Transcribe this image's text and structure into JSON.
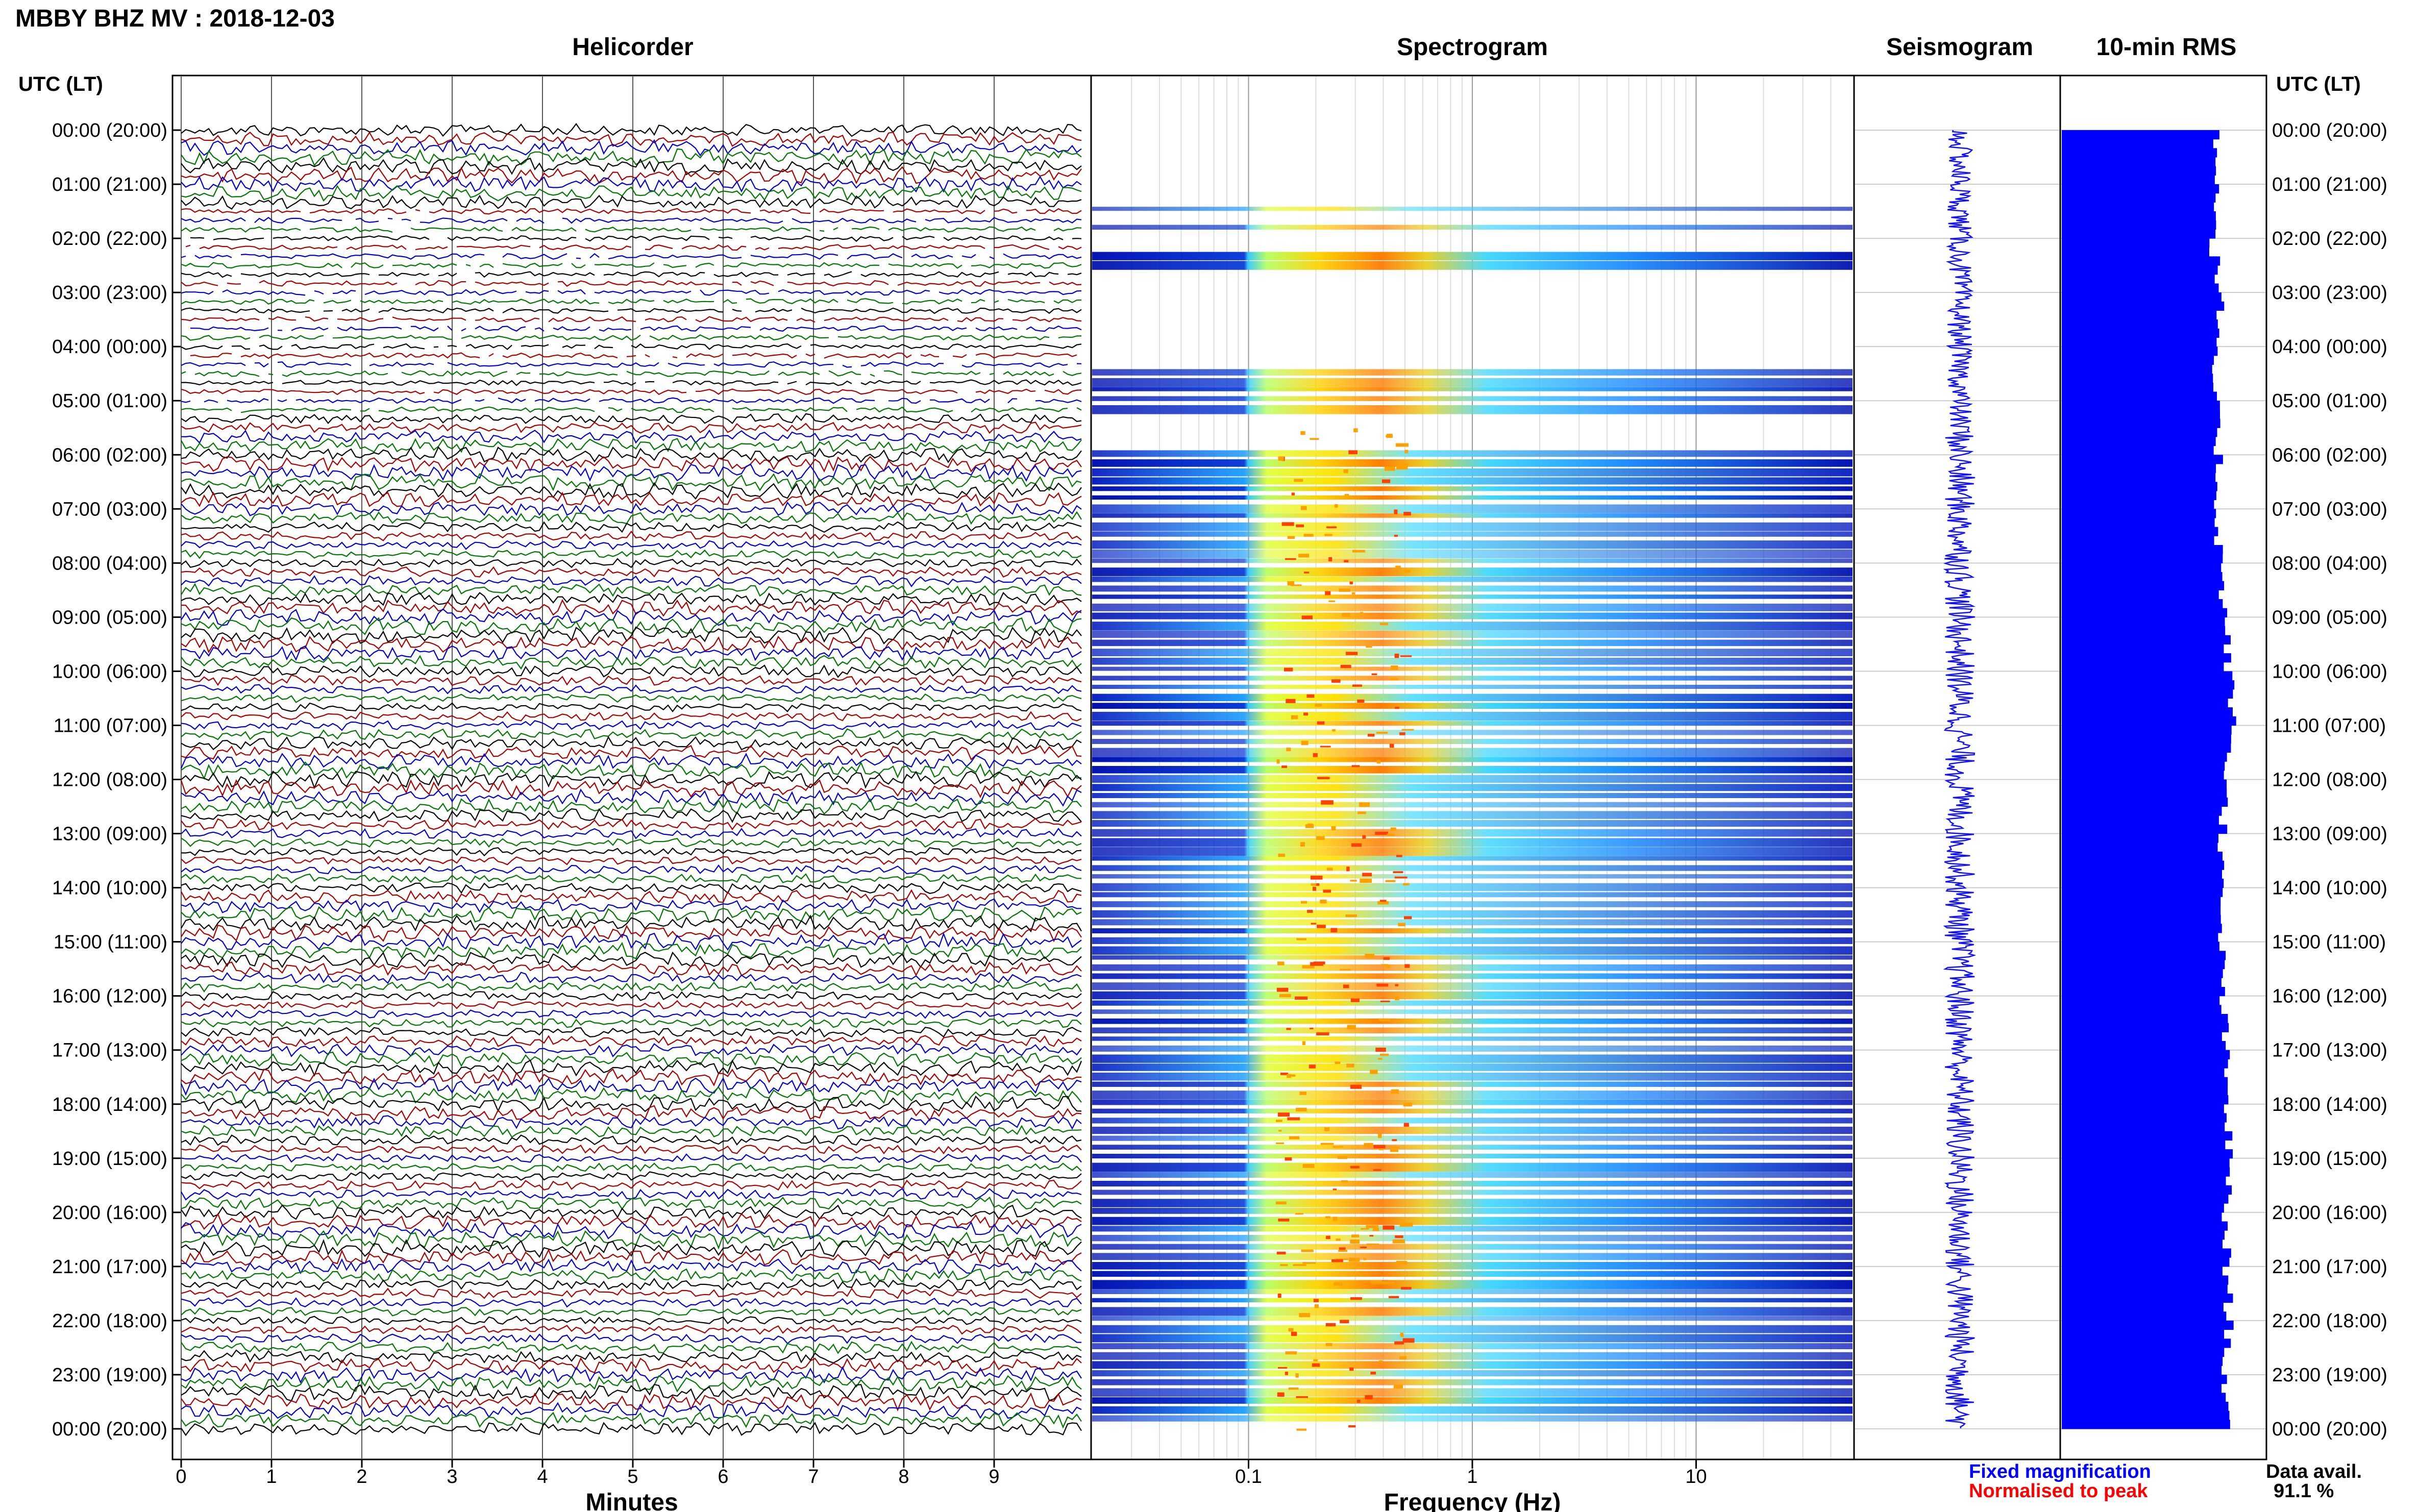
{
  "header": {
    "title": "MBBY BHZ MV : 2018-12-03",
    "time_axis_label": "UTC (LT)"
  },
  "panels": {
    "helicorder": {
      "title": "Helicorder",
      "xlabel": "Minutes",
      "xticks": [
        "0",
        "1",
        "2",
        "3",
        "4",
        "5",
        "6",
        "7",
        "8",
        "9"
      ]
    },
    "spectrogram": {
      "title": "Spectrogram",
      "xlabel": "Frequency (Hz)",
      "xticks": [
        "0.1",
        "1",
        "10"
      ]
    },
    "seismogram": {
      "title": "Seismogram"
    },
    "rms": {
      "title": "10-min RMS"
    }
  },
  "time_labels": [
    "00:00 (20:00)",
    "01:00 (21:00)",
    "02:00 (22:00)",
    "03:00 (23:00)",
    "04:00 (00:00)",
    "05:00 (01:00)",
    "06:00 (02:00)",
    "07:00 (03:00)",
    "08:00 (04:00)",
    "09:00 (05:00)",
    "10:00 (06:00)",
    "11:00 (07:00)",
    "12:00 (08:00)",
    "13:00 (09:00)",
    "14:00 (10:00)",
    "15:00 (11:00)",
    "16:00 (12:00)",
    "17:00 (13:00)",
    "18:00 (14:00)",
    "19:00 (15:00)",
    "20:00 (16:00)",
    "21:00 (17:00)",
    "22:00 (18:00)",
    "23:00 (19:00)",
    "00:00 (20:00)"
  ],
  "legend": {
    "fixed_magnification": "Fixed magnification",
    "normalised_to_peak": "Normalised to peak",
    "data_avail_label": "Data avail.",
    "data_avail_value": "91.1 %"
  },
  "colors": {
    "trace_cycle": [
      "#000000",
      "#aa0000",
      "#0000cc",
      "#007700"
    ],
    "fixed_magnification": "#0000ff",
    "normalised_to_peak": "#ff0000",
    "rms_fill": "#0000ff"
  },
  "chart_data": [
    {
      "type": "line",
      "title": "Helicorder",
      "xlabel": "Minutes",
      "xlim": [
        0,
        10
      ],
      "rows_per_hour": 6,
      "hours": 24,
      "row_minutes": 10,
      "grid": true
    },
    {
      "type": "heatmap",
      "title": "Spectrogram",
      "xlabel": "Frequency (Hz)",
      "x_scale": "log",
      "xlim": [
        0.02,
        50
      ],
      "dominant_band_hz": [
        0.13,
        0.5
      ]
    },
    {
      "type": "area",
      "title": "10-min RMS",
      "x_unit": "hour_utc",
      "x": [
        0,
        1,
        2,
        3,
        4,
        5,
        6,
        7,
        8,
        9,
        10,
        11,
        12,
        13,
        14,
        15,
        16,
        17,
        18,
        19,
        20,
        21,
        22,
        23,
        24
      ],
      "values": [
        0.76,
        0.77,
        0.74,
        0.78,
        0.74,
        0.75,
        0.77,
        0.76,
        0.78,
        0.8,
        0.82,
        0.84,
        0.8,
        0.79,
        0.77,
        0.78,
        0.79,
        0.8,
        0.81,
        0.82,
        0.8,
        0.81,
        0.82,
        0.8,
        0.8
      ]
    }
  ]
}
